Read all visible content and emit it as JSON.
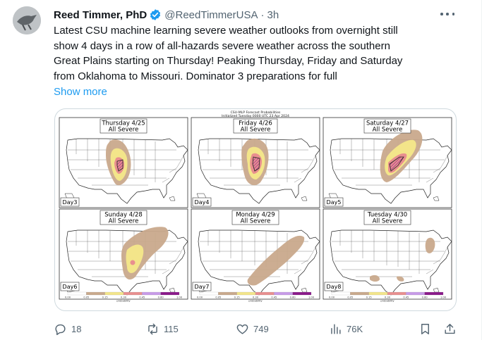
{
  "tweet": {
    "author_name": "Reed Timmer, PhD",
    "handle": "@ReedTimmerUSA",
    "separator": "·",
    "time": "3h",
    "text_lines": [
      "Latest CSU machine learning severe weather outlooks from overnight still",
      "show 4 days in a row of all-hazards severe weather across the southern",
      "Great Plains starting on Thursday! Peaking Thursday, Friday and Saturday",
      "from Oklahoma to Missouri. Dominator 3 preparations for full"
    ],
    "show_more": "Show more"
  },
  "figure": {
    "title_line1": "CSU-MLP Forecast Probabilities",
    "title_line2": "Initialized Tuesday 0000 UTC 23 Apr 2024",
    "panels": [
      {
        "date": "Thursday 4/25",
        "hazard": "All Severe",
        "day": "Day3"
      },
      {
        "date": "Friday 4/26",
        "hazard": "All Severe",
        "day": "Day4"
      },
      {
        "date": "Saturday 4/27",
        "hazard": "All Severe",
        "day": "Day5"
      },
      {
        "date": "Sunday 4/28",
        "hazard": "All Severe",
        "day": "Day6"
      },
      {
        "date": "Monday 4/29",
        "hazard": "All Severe",
        "day": "Day7"
      },
      {
        "date": "Tuesday 4/30",
        "hazard": "All Severe",
        "day": "Day8"
      }
    ],
    "colorbar": {
      "ticks": [
        "0.00",
        "0.05",
        "0.15",
        "0.30",
        "0.45",
        "0.60",
        "1.00"
      ],
      "label": "probability",
      "colors": [
        "#c9a98c",
        "#f3e58a",
        "#e88f8f",
        "#c79be8",
        "#8a1a8a"
      ]
    }
  },
  "actions": {
    "replies": "18",
    "reposts": "115",
    "likes": "749",
    "views": "76K"
  },
  "colors": {
    "link": "#1d9bf0",
    "verified": "#1d9bf0",
    "muted": "#536471",
    "repost": "#00ba7c"
  }
}
